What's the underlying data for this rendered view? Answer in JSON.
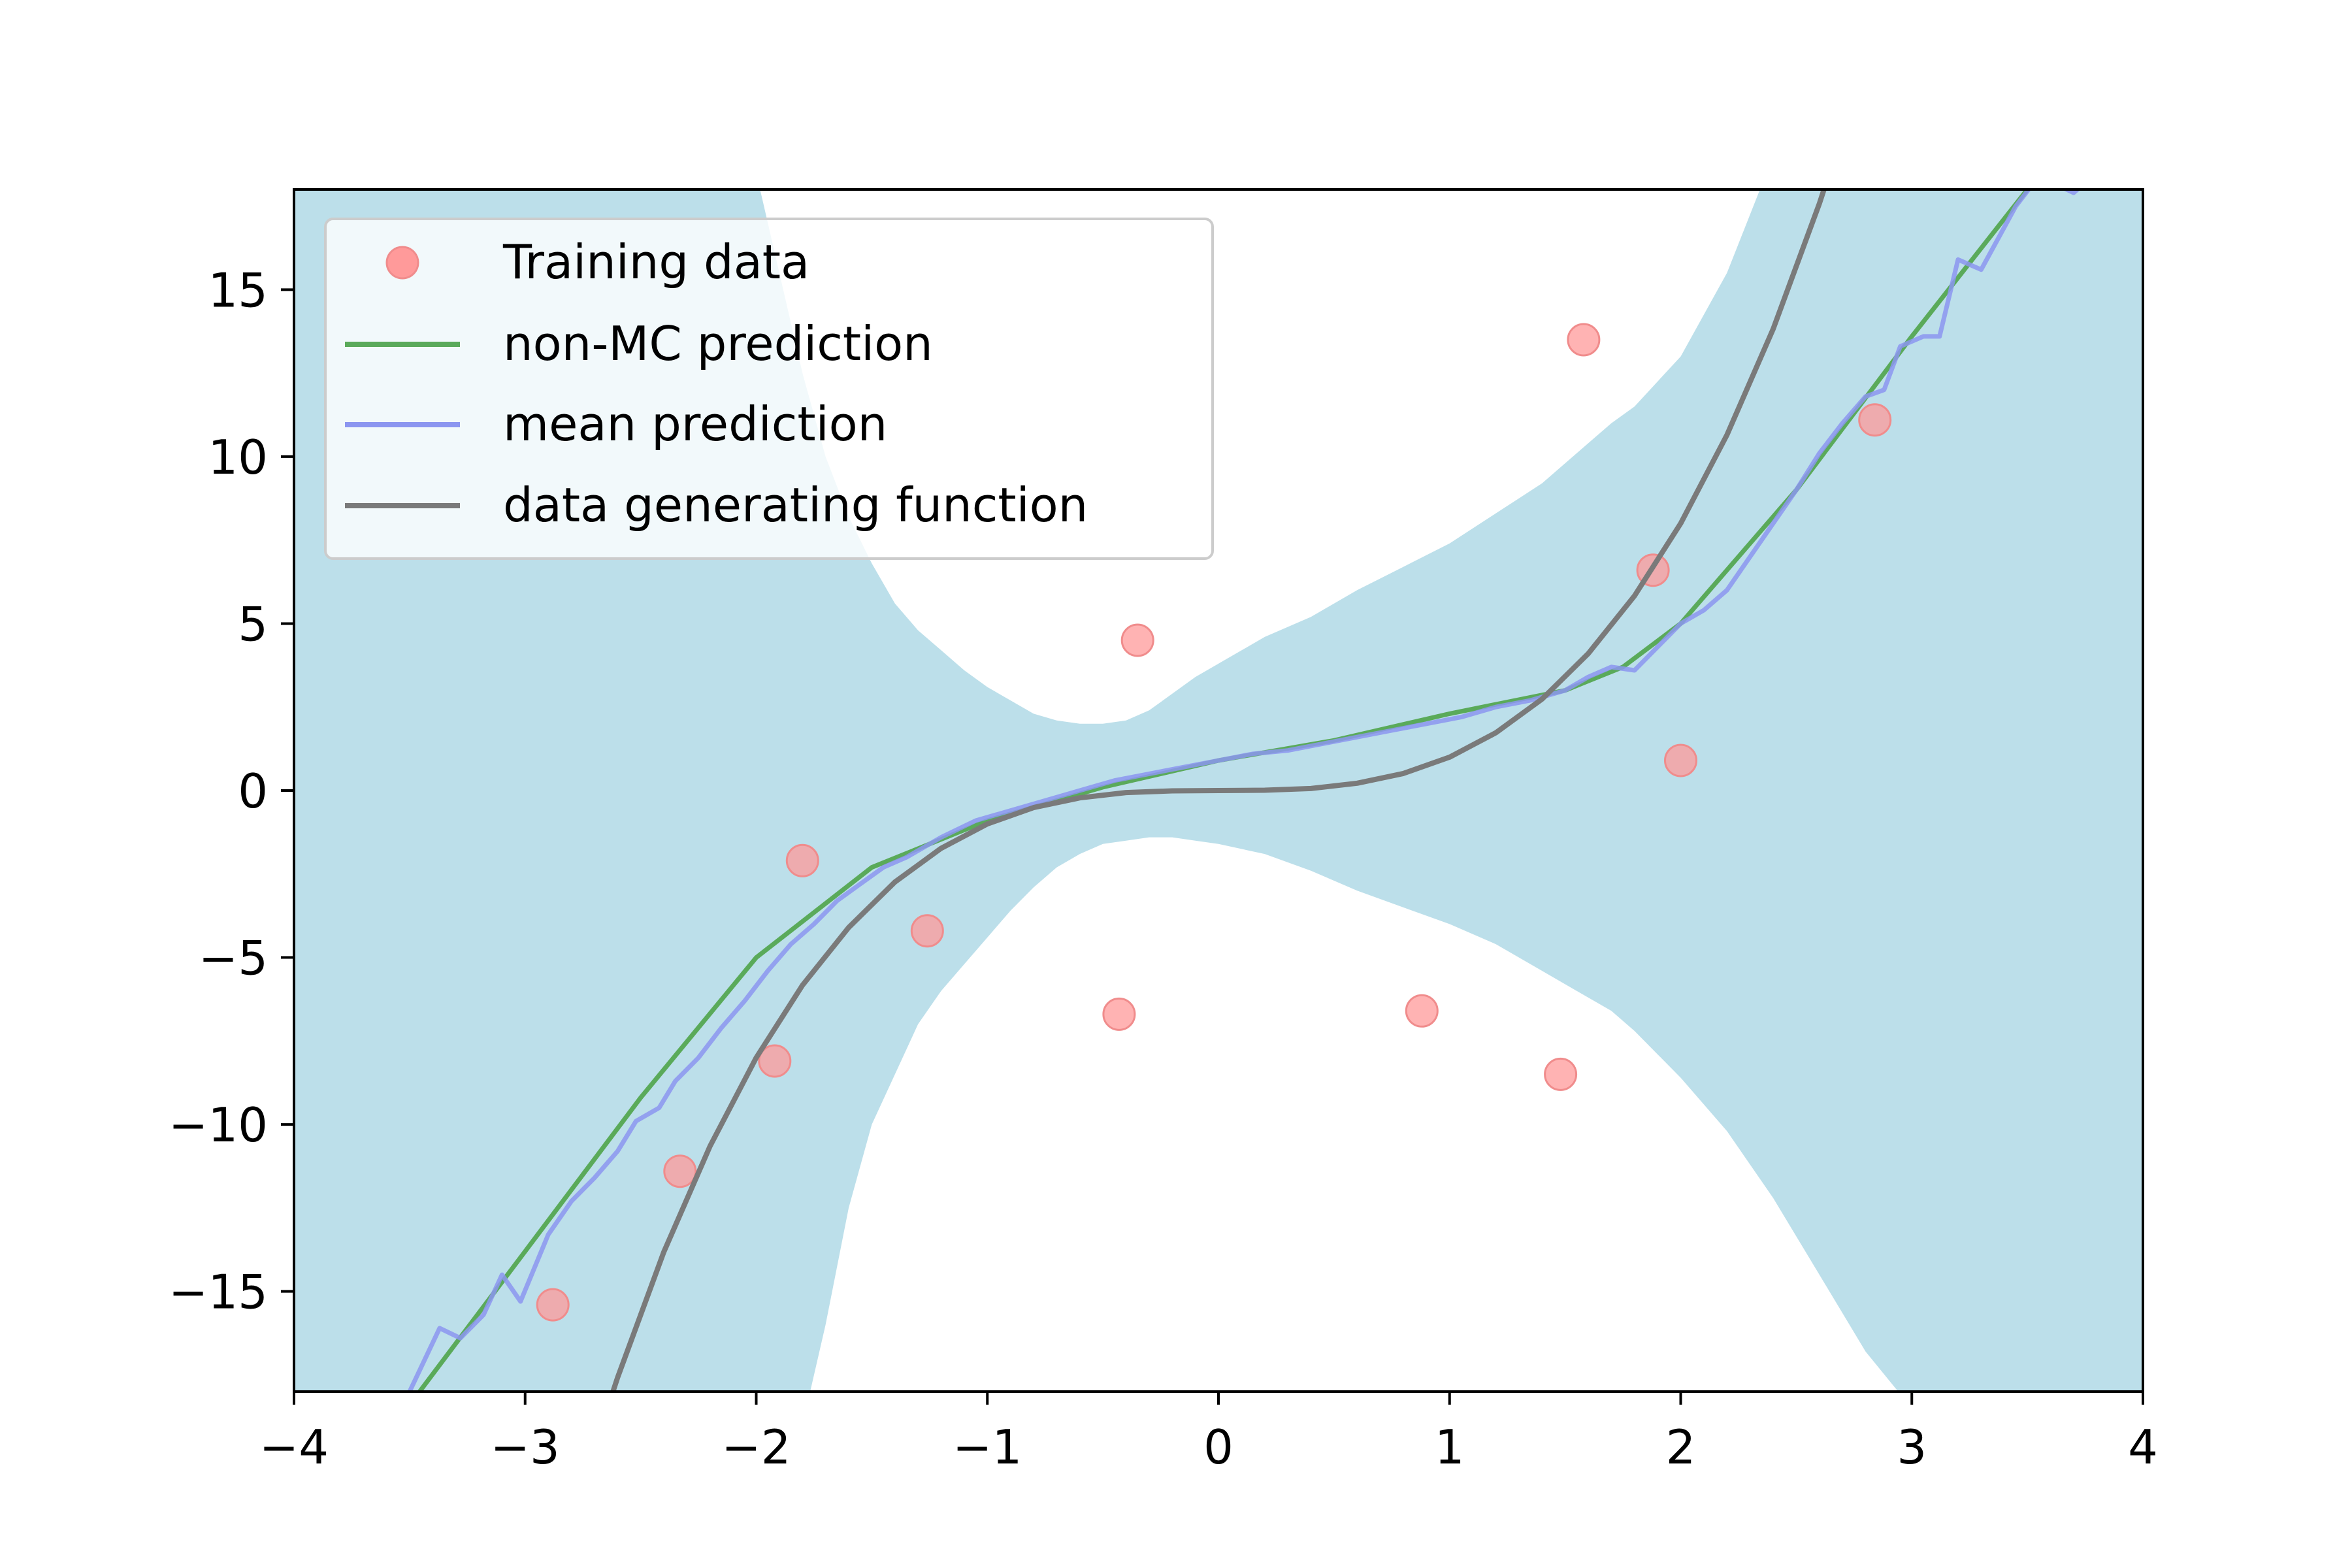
{
  "chart_data": {
    "type": "line",
    "xlim": [
      -4,
      4
    ],
    "ylim": [
      -18,
      18
    ],
    "xticks": [
      -4,
      -3,
      -2,
      -1,
      0,
      1,
      2,
      3,
      4
    ],
    "xtick_labels": [
      "−4",
      "−3",
      "−2",
      "−1",
      "0",
      "1",
      "2",
      "3",
      "4"
    ],
    "yticks": [
      -15,
      -10,
      -5,
      0,
      5,
      10,
      15
    ],
    "ytick_labels": [
      "−15",
      "−10",
      "−5",
      "0",
      "5",
      "10",
      "15"
    ],
    "grid": false,
    "legend_position": "top-left",
    "legend": [
      {
        "label": "Training data",
        "kind": "marker",
        "color": "#ff9a9a"
      },
      {
        "label": "non-MC prediction",
        "kind": "line",
        "color": "#5aaa5a"
      },
      {
        "label": "mean prediction",
        "kind": "line",
        "color": "#8c96f0"
      },
      {
        "label": "data generating function",
        "kind": "line",
        "color": "#7a7a7a"
      }
    ],
    "colors": {
      "band": "#bcdfea",
      "training": "#ff9a9a",
      "training_edge": "#f08c8c",
      "non_mc": "#5aaa5a",
      "mean": "#8c96f0",
      "generating": "#7a7a7a"
    },
    "training_points": {
      "x": [
        -2.88,
        -2.33,
        -1.92,
        -1.8,
        -1.26,
        -0.43,
        -0.35,
        0.88,
        1.48,
        1.58,
        1.88,
        2.0,
        2.84
      ],
      "y": [
        -15.4,
        -11.4,
        -8.1,
        -2.1,
        -4.2,
        -6.7,
        4.5,
        -6.6,
        -8.5,
        13.5,
        6.6,
        0.9,
        11.1
      ]
    },
    "non_mc_prediction": {
      "x": [
        -4.0,
        -3.5,
        -3.0,
        -2.5,
        -2.0,
        -1.5,
        -1.0,
        -0.5,
        0.0,
        0.5,
        1.0,
        1.5,
        1.75,
        2.0,
        2.5,
        3.0,
        3.5,
        4.0
      ],
      "y": [
        -22.5,
        -18.4,
        -13.8,
        -9.2,
        -5.0,
        -2.3,
        -0.9,
        0.1,
        0.9,
        1.5,
        2.3,
        3.0,
        3.7,
        5.0,
        9.0,
        13.6,
        18.0,
        22.5
      ]
    },
    "mean_prediction": {
      "x": [
        -3.5,
        -3.37,
        -3.28,
        -3.18,
        -3.1,
        -3.02,
        -2.9,
        -2.8,
        -2.7,
        -2.6,
        -2.52,
        -2.42,
        -2.35,
        -2.25,
        -2.15,
        -2.05,
        -1.95,
        -1.85,
        -1.75,
        -1.65,
        -1.55,
        -1.45,
        -1.35,
        -1.2,
        -1.05,
        -0.9,
        -0.75,
        -0.6,
        -0.45,
        -0.3,
        -0.15,
        0.0,
        0.15,
        0.3,
        0.45,
        0.6,
        0.75,
        0.9,
        1.05,
        1.2,
        1.35,
        1.5,
        1.6,
        1.7,
        1.8,
        1.9,
        2.0,
        2.1,
        2.2,
        2.3,
        2.4,
        2.5,
        2.6,
        2.7,
        2.8,
        2.88,
        2.95,
        3.05,
        3.12,
        3.2,
        3.3,
        3.45,
        3.55,
        3.7,
        3.85,
        4.0
      ],
      "y": [
        -18.0,
        -16.1,
        -16.4,
        -15.7,
        -14.5,
        -15.3,
        -13.3,
        -12.3,
        -11.6,
        -10.8,
        -9.9,
        -9.5,
        -8.7,
        -8.0,
        -7.1,
        -6.3,
        -5.4,
        -4.6,
        -4.0,
        -3.3,
        -2.8,
        -2.3,
        -2.0,
        -1.4,
        -0.9,
        -0.6,
        -0.3,
        0.0,
        0.3,
        0.5,
        0.7,
        0.9,
        1.1,
        1.2,
        1.4,
        1.6,
        1.8,
        2.0,
        2.2,
        2.5,
        2.7,
        3.0,
        3.4,
        3.7,
        3.6,
        4.3,
        5.0,
        5.4,
        6.0,
        7.0,
        8.0,
        9.0,
        10.1,
        11.0,
        11.8,
        12.0,
        13.3,
        13.6,
        13.6,
        15.9,
        15.6,
        17.5,
        18.4,
        17.9,
        18.8,
        19.5
      ]
    },
    "data_generating_function": {
      "x": [
        -2.7,
        -2.6,
        -2.4,
        -2.2,
        -2.0,
        -1.8,
        -1.6,
        -1.4,
        -1.2,
        -1.0,
        -0.8,
        -0.6,
        -0.4,
        -0.2,
        0.0,
        0.2,
        0.4,
        0.6,
        0.8,
        1.0,
        1.2,
        1.4,
        1.6,
        1.8,
        2.0,
        2.2,
        2.4,
        2.6,
        2.7
      ],
      "y": [
        -19.68,
        -17.58,
        -13.82,
        -10.65,
        -8.0,
        -5.83,
        -4.1,
        -2.74,
        -1.73,
        -1.0,
        -0.51,
        -0.22,
        -0.06,
        -0.01,
        0.0,
        0.01,
        0.06,
        0.22,
        0.51,
        1.0,
        1.73,
        2.74,
        4.1,
        5.83,
        8.0,
        10.65,
        13.82,
        17.58,
        19.68
      ]
    },
    "uncertainty_band": {
      "x": [
        -4.0,
        -3.8,
        -3.6,
        -3.4,
        -3.2,
        -3.0,
        -2.8,
        -2.6,
        -2.4,
        -2.2,
        -2.0,
        -1.9,
        -1.8,
        -1.7,
        -1.6,
        -1.5,
        -1.4,
        -1.3,
        -1.2,
        -1.1,
        -1.0,
        -0.9,
        -0.8,
        -0.7,
        -0.6,
        -0.5,
        -0.4,
        -0.3,
        -0.2,
        -0.1,
        0.0,
        0.2,
        0.4,
        0.6,
        0.8,
        1.0,
        1.2,
        1.4,
        1.6,
        1.7,
        1.8,
        2.0,
        2.2,
        2.4,
        2.6,
        2.8,
        3.0,
        3.2,
        3.4,
        3.6,
        3.8,
        4.0
      ],
      "upper": [
        20.0,
        20.0,
        20.0,
        20.0,
        20.0,
        20.0,
        20.0,
        20.0,
        20.0,
        20.0,
        18.5,
        15.5,
        12.5,
        10.0,
        8.2,
        6.8,
        5.6,
        4.8,
        4.2,
        3.6,
        3.1,
        2.7,
        2.3,
        2.1,
        2.0,
        2.0,
        2.1,
        2.4,
        2.9,
        3.4,
        3.8,
        4.6,
        5.2,
        6.0,
        6.7,
        7.4,
        8.3,
        9.2,
        10.4,
        11.0,
        11.5,
        13.0,
        15.5,
        19.0,
        20.0,
        20.0,
        20.0,
        20.0,
        20.0,
        20.0,
        20.0,
        20.0
      ],
      "lower": [
        -20.0,
        -20.0,
        -20.0,
        -20.0,
        -20.0,
        -20.0,
        -20.0,
        -20.0,
        -20.0,
        -20.0,
        -20.0,
        -20.0,
        -19.0,
        -16.0,
        -12.5,
        -10.0,
        -8.5,
        -7.0,
        -6.0,
        -5.2,
        -4.4,
        -3.6,
        -2.9,
        -2.3,
        -1.9,
        -1.6,
        -1.5,
        -1.4,
        -1.4,
        -1.5,
        -1.6,
        -1.9,
        -2.4,
        -3.0,
        -3.5,
        -4.0,
        -4.6,
        -5.4,
        -6.2,
        -6.6,
        -7.2,
        -8.6,
        -10.2,
        -12.2,
        -14.5,
        -16.8,
        -18.5,
        -20.0,
        -20.0,
        -20.0,
        -20.0,
        -20.0
      ]
    }
  }
}
